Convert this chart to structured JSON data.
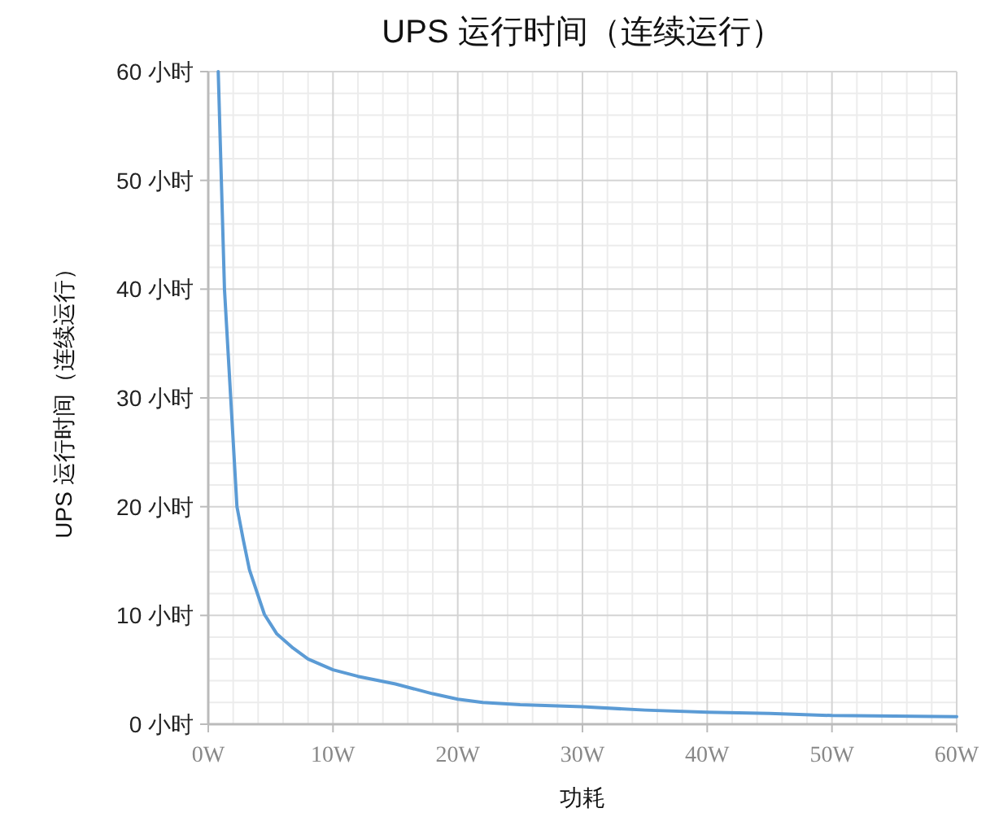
{
  "chart_data": {
    "type": "line",
    "title": "UPS 运行时间（连续运行）",
    "xlabel": "功耗",
    "ylabel": "UPS 运行时间（连续运行）",
    "x": [
      0.8,
      1.0,
      1.3,
      1.8,
      2.3,
      2.8,
      3.3,
      4.5,
      5.5,
      6.8,
      8,
      10,
      12,
      15,
      18,
      20,
      22,
      25,
      30,
      35,
      40,
      45,
      50,
      55,
      60
    ],
    "series": [
      {
        "color": "#5b9bd5",
        "values": [
          60,
          52,
          40,
          30,
          20,
          17,
          14.2,
          10.1,
          8.3,
          7.0,
          6.0,
          5.0,
          4.4,
          3.7,
          2.8,
          2.3,
          2.0,
          1.8,
          1.6,
          1.3,
          1.1,
          1.0,
          0.8,
          0.75,
          0.7
        ]
      }
    ],
    "xlim": [
      0,
      60
    ],
    "xticks": [
      {
        "value": 0,
        "label": "0W"
      },
      {
        "value": 10,
        "label": "10W"
      },
      {
        "value": 20,
        "label": "20W"
      },
      {
        "value": 30,
        "label": "30W"
      },
      {
        "value": 40,
        "label": "40W"
      },
      {
        "value": 50,
        "label": "50W"
      },
      {
        "value": 60,
        "label": "60W"
      }
    ],
    "ylim": [
      0,
      60
    ],
    "yticks": [
      {
        "value": 0,
        "label": "0 小时"
      },
      {
        "value": 10,
        "label": "10 小时"
      },
      {
        "value": 20,
        "label": "20 小时"
      },
      {
        "value": 30,
        "label": "30 小时"
      },
      {
        "value": 40,
        "label": "40 小时"
      },
      {
        "value": 50,
        "label": "50 小时"
      },
      {
        "value": 60,
        "label": "60 小时"
      }
    ],
    "grid": true,
    "marker": "none",
    "line_style": "solid"
  }
}
